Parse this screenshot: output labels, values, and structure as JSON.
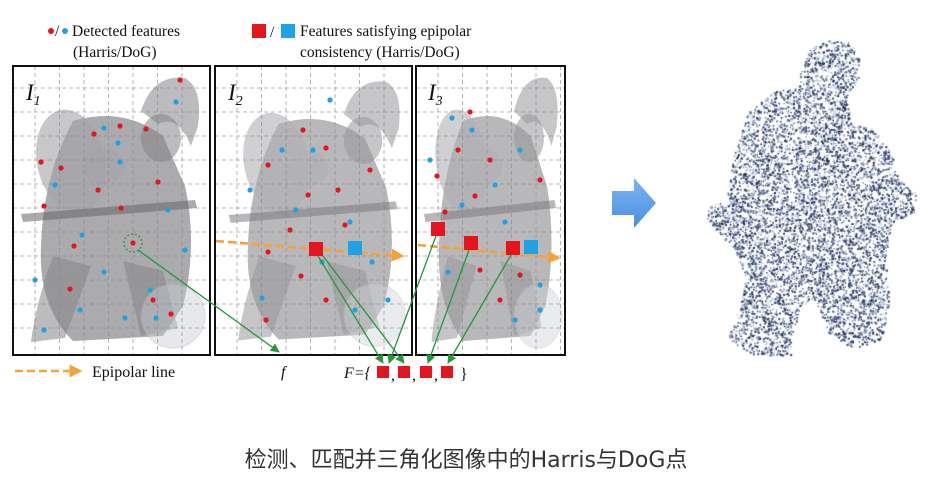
{
  "legend": {
    "detected_separator": "/",
    "detected_line1": "Detected features",
    "detected_line2": "(Harris/DoG)",
    "consistent_separator": "/",
    "consistent_line1": "Features satisfying epipolar",
    "consistent_line2": "consistency (Harris/DoG)",
    "epipolar_line_label": "Epipolar line"
  },
  "panels": [
    {
      "label": "I",
      "subscript": "1"
    },
    {
      "label": "I",
      "subscript": "2"
    },
    {
      "label": "I",
      "subscript": "3"
    }
  ],
  "matches": {
    "single_feature": "f",
    "set_prefix": "F={",
    "set_separator": ",",
    "set_suffix": "}"
  },
  "colors": {
    "harris": "#e5151f",
    "dog": "#1ea2e3",
    "epipolar": "#f2a33a",
    "match": "#27963c",
    "arrow": "#4a8ee0",
    "cloud": "#27355c"
  },
  "caption": "检测、匹配并三角化图像中的Harris与DoG点"
}
